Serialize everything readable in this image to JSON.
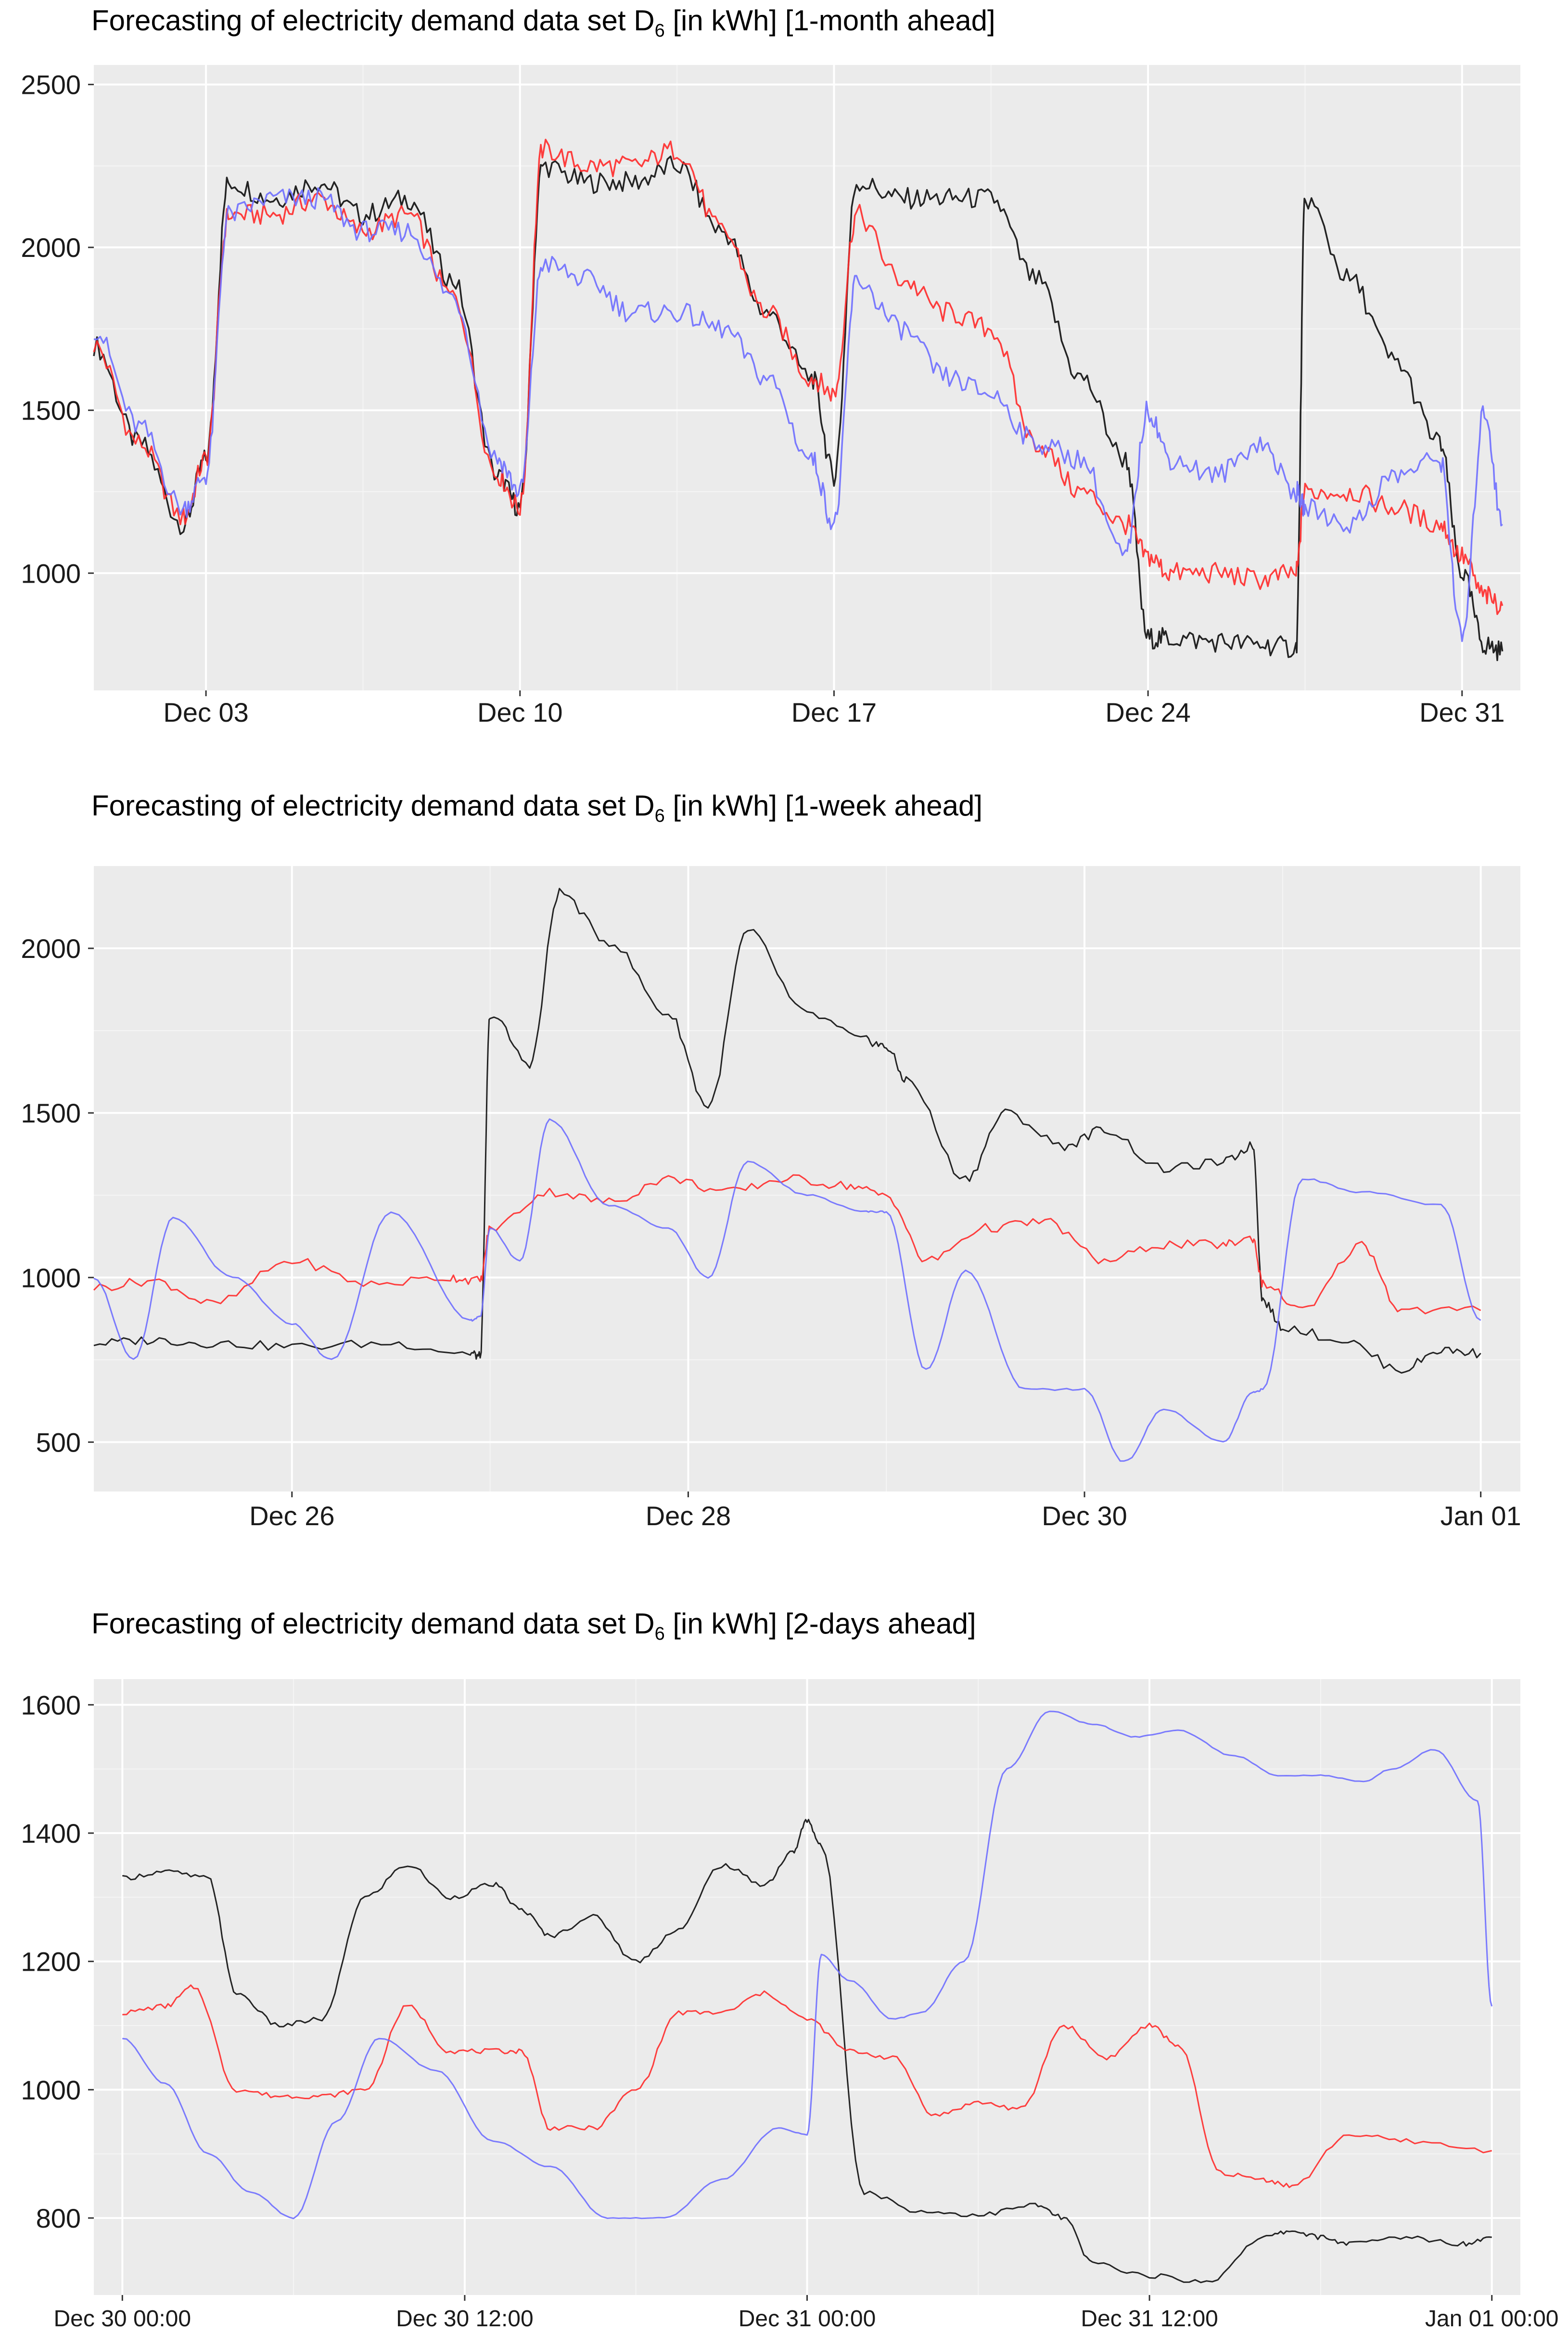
{
  "colors": {
    "actual": "#000000",
    "red": "#ff2a2a",
    "blue": "#6e6eff",
    "panel": "#ebebeb",
    "grid": "#ffffff"
  },
  "chart_data": [
    {
      "type": "line",
      "title_prefix": "Forecasting of electricity demand data set D",
      "title_sub": "6",
      "title_suffix": " [in kWh] [1-month ahead]",
      "x_unit": "day",
      "xlim": [
        0,
        31.8
      ],
      "ylim": [
        640,
        2560
      ],
      "yticks": [
        1000,
        1500,
        2000,
        2500
      ],
      "ytick_labels": [
        "1000",
        "1500",
        "2000",
        "2500"
      ],
      "xticks": [
        2.5,
        9.5,
        16.5,
        23.5,
        30.5
      ],
      "xtick_labels": [
        "Dec 03",
        "Dec 10",
        "Dec 17",
        "Dec 24",
        "Dec 31"
      ],
      "series": [
        {
          "name": "black",
          "color": "#000000",
          "x": [
            0,
            1,
            2,
            2.5,
            3,
            4,
            5,
            6,
            7,
            8,
            9,
            9.5,
            10,
            11,
            12,
            13,
            14,
            15,
            16,
            16.5,
            17,
            18,
            19,
            20,
            21,
            22,
            23,
            23.5,
            24,
            25,
            26,
            26.8,
            27,
            28,
            29,
            30,
            30.5,
            31,
            31.4
          ],
          "values": [
            1700,
            1400,
            1150,
            1350,
            2200,
            2150,
            2200,
            2100,
            2150,
            1900,
            1300,
            1200,
            2250,
            2200,
            2200,
            2250,
            2050,
            1800,
            1600,
            1300,
            2200,
            2150,
            2150,
            2150,
            1900,
            1600,
            1350,
            800,
            800,
            790,
            780,
            770,
            2150,
            1900,
            1650,
            1400,
            1000,
            780,
            760
          ]
        },
        {
          "name": "red",
          "color": "#ff2a2a",
          "x": [
            0,
            1,
            2,
            2.5,
            3,
            4,
            5,
            6,
            7,
            8,
            9,
            9.5,
            10,
            11,
            12,
            13,
            14,
            15,
            16,
            16.5,
            17,
            18,
            19,
            20,
            21,
            22,
            23,
            23.5,
            24,
            25,
            26,
            26.8,
            27,
            28,
            29,
            30,
            30.5,
            31,
            31.4
          ],
          "values": [
            1700,
            1400,
            1170,
            1350,
            2100,
            2100,
            2150,
            2050,
            2100,
            1850,
            1300,
            1200,
            2300,
            2250,
            2250,
            2300,
            2050,
            1800,
            1600,
            1550,
            2100,
            1900,
            1800,
            1750,
            1400,
            1250,
            1150,
            1050,
            1000,
            1000,
            980,
            1000,
            1250,
            1250,
            1200,
            1150,
            1050,
            930,
            900
          ]
        },
        {
          "name": "blue",
          "color": "#6e6eff",
          "x": [
            0,
            1,
            2,
            2.5,
            3,
            4,
            5,
            6,
            7,
            8,
            9,
            9.5,
            10,
            11,
            12,
            13,
            14,
            15,
            16,
            16.5,
            17,
            18,
            19,
            20,
            21,
            22,
            23,
            23.5,
            24,
            25,
            26,
            26.8,
            27,
            28,
            29,
            30,
            30.5,
            31,
            31.4
          ],
          "values": [
            1750,
            1450,
            1200,
            1300,
            2100,
            2150,
            2150,
            2050,
            2050,
            1850,
            1350,
            1250,
            1950,
            1900,
            1800,
            1800,
            1750,
            1600,
            1350,
            1150,
            1900,
            1750,
            1600,
            1550,
            1400,
            1350,
            1050,
            1500,
            1350,
            1300,
            1400,
            1250,
            1200,
            1150,
            1300,
            1350,
            800,
            1500,
            1150
          ]
        }
      ]
    },
    {
      "type": "line",
      "title_prefix": "Forecasting of electricity demand data set D",
      "title_sub": "6",
      "title_suffix": " [in kWh] [1-week ahead]",
      "x_unit": "day",
      "xlim": [
        0,
        7.2
      ],
      "ylim": [
        350,
        2250
      ],
      "yticks": [
        500,
        1000,
        1500,
        2000
      ],
      "ytick_labels": [
        "500",
        "1000",
        "1500",
        "2000"
      ],
      "xticks": [
        1,
        3,
        5,
        7
      ],
      "xtick_labels": [
        "Dec 26",
        "Dec 28",
        "Dec 30",
        "Jan 01"
      ],
      "series": [
        {
          "name": "black",
          "color": "#000000",
          "x": [
            0,
            0.3,
            0.6,
            1.0,
            1.5,
            1.9,
            1.95,
            2.0,
            2.2,
            2.35,
            2.6,
            2.9,
            3.1,
            3.3,
            3.6,
            3.9,
            4.0,
            4.1,
            4.4,
            4.6,
            4.9,
            5.1,
            5.4,
            5.7,
            5.85,
            5.9,
            6.0,
            6.3,
            6.6,
            6.8,
            7.0
          ],
          "values": [
            800,
            810,
            800,
            790,
            800,
            770,
            760,
            1800,
            1650,
            2170,
            2020,
            1800,
            1520,
            2050,
            1800,
            1720,
            1700,
            1600,
            1300,
            1500,
            1400,
            1450,
            1330,
            1350,
            1400,
            930,
            850,
            810,
            720,
            780,
            770
          ]
        },
        {
          "name": "red",
          "color": "#ff2a2a",
          "x": [
            0,
            0.3,
            0.6,
            1.0,
            1.4,
            1.8,
            1.95,
            2.0,
            2.3,
            2.6,
            2.9,
            3.2,
            3.5,
            3.8,
            4.0,
            4.2,
            4.5,
            4.8,
            5.1,
            5.4,
            5.7,
            5.85,
            5.9,
            6.1,
            6.4,
            6.6,
            7.0
          ],
          "values": [
            970,
            990,
            920,
            1050,
            980,
            1000,
            990,
            1150,
            1260,
            1230,
            1300,
            1260,
            1300,
            1280,
            1250,
            1050,
            1150,
            1170,
            1050,
            1100,
            1100,
            1120,
            980,
            900,
            1100,
            900,
            900
          ]
        },
        {
          "name": "blue",
          "color": "#6e6eff",
          "x": [
            0,
            0.2,
            0.4,
            0.7,
            1.0,
            1.2,
            1.5,
            1.9,
            1.95,
            2.0,
            2.15,
            2.3,
            2.6,
            2.9,
            3.1,
            3.3,
            3.6,
            3.9,
            4.0,
            4.2,
            4.4,
            4.7,
            5.0,
            5.2,
            5.4,
            5.7,
            5.85,
            5.9,
            6.1,
            6.4,
            6.8,
            7.0
          ],
          "values": [
            1000,
            750,
            1180,
            1000,
            860,
            750,
            1200,
            870,
            880,
            1150,
            1050,
            1480,
            1220,
            1150,
            1000,
            1350,
            1250,
            1200,
            1200,
            720,
            1020,
            660,
            660,
            440,
            600,
            500,
            650,
            660,
            1300,
            1260,
            1220,
            870
          ]
        }
      ]
    },
    {
      "type": "line",
      "title_prefix": "Forecasting of electricity demand data set D",
      "title_sub": "6",
      "title_suffix": " [in kWh] [2-days ahead]",
      "x_unit": "hour",
      "xlim": [
        -1,
        49
      ],
      "ylim": [
        680,
        1640
      ],
      "yticks": [
        800,
        1000,
        1200,
        1400,
        1600
      ],
      "ytick_labels": [
        "800",
        "1000",
        "1200",
        "1400",
        "1600"
      ],
      "xticks": [
        0,
        12,
        24,
        36,
        48
      ],
      "xtick_labels": [
        "Dec 30 00:00",
        "Dec 30 12:00",
        "Dec 31 00:00",
        "Dec 31 12:00",
        "Jan 01 00:00"
      ],
      "series": [
        {
          "name": "black",
          "color": "#000000",
          "x": [
            0,
            1.5,
            3,
            4,
            5.5,
            7,
            8.5,
            10,
            11.5,
            13,
            14,
            15,
            16.5,
            18,
            19.5,
            21,
            22.5,
            23.5,
            24,
            24.5,
            26,
            28,
            30,
            32,
            33,
            34,
            36,
            38,
            40,
            41,
            42,
            43,
            45,
            47,
            48
          ],
          "values": [
            1330,
            1340,
            1330,
            1150,
            1100,
            1110,
            1300,
            1350,
            1300,
            1320,
            1280,
            1240,
            1270,
            1200,
            1250,
            1350,
            1320,
            1370,
            1420,
            1380,
            840,
            810,
            805,
            820,
            800,
            730,
            710,
            700,
            770,
            780,
            770,
            760,
            770,
            760,
            770
          ]
        },
        {
          "name": "red",
          "color": "#ff2a2a",
          "x": [
            0,
            1.5,
            2.5,
            4,
            5.5,
            7,
            8.5,
            10,
            11.5,
            13,
            14,
            15,
            16.5,
            18,
            19.5,
            21,
            22.5,
            24,
            25.5,
            27,
            28.5,
            30,
            31.5,
            33,
            34.5,
            36,
            37,
            38.5,
            40,
            41,
            43,
            45,
            48
          ],
          "values": [
            1120,
            1130,
            1160,
            1000,
            990,
            990,
            1000,
            1130,
            1060,
            1060,
            1060,
            940,
            940,
            1000,
            1120,
            1120,
            1150,
            1110,
            1060,
            1050,
            960,
            980,
            970,
            1100,
            1050,
            1100,
            1070,
            870,
            860,
            850,
            930,
            920,
            905
          ]
        },
        {
          "name": "blue",
          "color": "#6e6eff",
          "x": [
            0,
            1.5,
            3,
            4.5,
            6,
            7.5,
            9,
            11,
            13,
            15,
            17,
            19,
            21,
            23,
            24,
            24.5,
            25.5,
            27,
            28,
            29.5,
            31,
            32.5,
            34,
            35.5,
            37,
            39,
            40.5,
            42,
            43.5,
            44.5,
            46,
            47.5,
            48
          ],
          "values": [
            1080,
            1010,
            900,
            840,
            800,
            950,
            1080,
            1030,
            920,
            880,
            800,
            800,
            860,
            940,
            930,
            1210,
            1170,
            1110,
            1120,
            1200,
            1500,
            1590,
            1570,
            1550,
            1560,
            1520,
            1490,
            1490,
            1480,
            1500,
            1530,
            1450,
            1130
          ]
        }
      ]
    }
  ]
}
